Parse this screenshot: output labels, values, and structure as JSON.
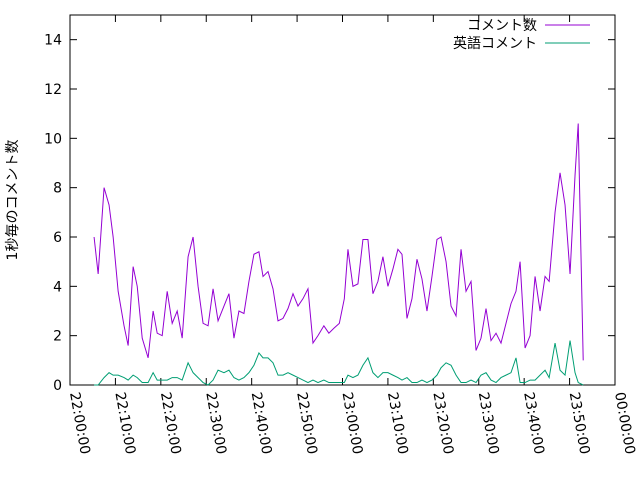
{
  "chart_data": {
    "type": "line",
    "y_label": "1秒毎のコメント数",
    "x": [
      5.3,
      6.2,
      7.5,
      8.6,
      9.5,
      10.6,
      11.9,
      12.8,
      13.9,
      14.8,
      15.9,
      17.2,
      18.3,
      19.2,
      20.3,
      21.4,
      22.5,
      23.6,
      24.7,
      26,
      27.1,
      28.2,
      29.3,
      30.4,
      31.5,
      32.6,
      33.9,
      35,
      36.1,
      37.2,
      38.3,
      39.4,
      40.5,
      41.6,
      42.5,
      43.6,
      44.7,
      45.8,
      46.9,
      48,
      49.1,
      50.2,
      51.3,
      52.4,
      53.5,
      54.6,
      55.9,
      57,
      58.1,
      59.3,
      60.4,
      61.2,
      62.3,
      63.4,
      64.5,
      65.6,
      66.7,
      67.8,
      68.9,
      70,
      71.1,
      72.2,
      73.1,
      74.2,
      75.3,
      76.4,
      77.5,
      78.6,
      79.7,
      80.8,
      81.7,
      82.8,
      83.9,
      85,
      86.1,
      87.2,
      88.3,
      89.4,
      90.5,
      91.6,
      92.7,
      93.8,
      94.9,
      96,
      97.1,
      98.2,
      99.1,
      100.2,
      101.3,
      102.4,
      103.5,
      104.6,
      105.5,
      106.8,
      107.9,
      109,
      110.1,
      111.2,
      111.9,
      113
    ],
    "series": [
      {
        "name": "コメント数",
        "color": "#9400d3",
        "values": [
          6.0,
          4.5,
          8.0,
          7.3,
          6.0,
          3.8,
          2.4,
          1.6,
          4.8,
          4.0,
          1.9,
          1.1,
          3.0,
          2.1,
          2.0,
          3.8,
          2.5,
          3.0,
          1.9,
          5.2,
          6.0,
          4.0,
          2.5,
          2.4,
          3.9,
          2.6,
          3.2,
          3.7,
          1.9,
          3.0,
          2.9,
          4.2,
          5.3,
          5.4,
          4.4,
          4.6,
          3.9,
          2.6,
          2.7,
          3.1,
          3.7,
          3.2,
          3.5,
          3.9,
          1.7,
          2.0,
          2.4,
          2.1,
          2.3,
          2.5,
          3.5,
          5.5,
          4.0,
          4.1,
          5.9,
          5.9,
          3.7,
          4.2,
          5.2,
          4.0,
          4.7,
          5.5,
          5.3,
          2.7,
          3.5,
          5.1,
          4.3,
          3.0,
          4.4,
          5.9,
          6.0,
          5.0,
          3.2,
          2.8,
          5.5,
          3.8,
          4.2,
          1.4,
          1.9,
          3.1,
          1.8,
          2.1,
          1.7,
          2.5,
          3.3,
          3.8,
          5.0,
          1.5,
          2.0,
          4.4,
          3.0,
          4.4,
          4.2,
          7.0,
          8.6,
          7.3,
          4.5,
          8.5,
          10.6,
          1.0
        ]
      },
      {
        "name": "英語コメント",
        "color": "#009e73",
        "values": [
          0,
          0,
          0.3,
          0.5,
          0.4,
          0.4,
          0.3,
          0.2,
          0.4,
          0.3,
          0.1,
          0.1,
          0.5,
          0.2,
          0.2,
          0.2,
          0.3,
          0.3,
          0.2,
          0.9,
          0.5,
          0.3,
          0.1,
          0,
          0.2,
          0.6,
          0.5,
          0.6,
          0.3,
          0.2,
          0.3,
          0.5,
          0.8,
          1.3,
          1.1,
          1.1,
          0.9,
          0.4,
          0.4,
          0.5,
          0.4,
          0.3,
          0.2,
          0.1,
          0.2,
          0.1,
          0.2,
          0.1,
          0.1,
          0.1,
          0.1,
          0.4,
          0.3,
          0.4,
          0.8,
          1.1,
          0.5,
          0.3,
          0.5,
          0.5,
          0.4,
          0.3,
          0.2,
          0.3,
          0.1,
          0.1,
          0.2,
          0.1,
          0.2,
          0.4,
          0.7,
          0.9,
          0.8,
          0.4,
          0.1,
          0.1,
          0.2,
          0.1,
          0.4,
          0.5,
          0.2,
          0.1,
          0.3,
          0.4,
          0.5,
          1.1,
          0.1,
          0.1,
          0.2,
          0.2,
          0.4,
          0.6,
          0.3,
          1.7,
          0.6,
          0.4,
          1.8,
          0.5,
          0.1,
          0
        ]
      }
    ],
    "xlim": [
      0,
      120
    ],
    "xticks": [
      {
        "value": 0,
        "label": "22:00:00"
      },
      {
        "value": 10,
        "label": "22:10:00"
      },
      {
        "value": 20,
        "label": "22:20:00"
      },
      {
        "value": 30,
        "label": "22:30:00"
      },
      {
        "value": 40,
        "label": "22:40:00"
      },
      {
        "value": 50,
        "label": "22:50:00"
      },
      {
        "value": 60,
        "label": "23:00:00"
      },
      {
        "value": 70,
        "label": "23:10:00"
      },
      {
        "value": 80,
        "label": "23:20:00"
      },
      {
        "value": 90,
        "label": "23:30:00"
      },
      {
        "value": 100,
        "label": "23:40:00"
      },
      {
        "value": 110,
        "label": "23:50:00"
      },
      {
        "value": 120,
        "label": "00:00:00"
      }
    ],
    "ylim": [
      0,
      15
    ],
    "yticks": [
      0,
      2,
      4,
      6,
      8,
      10,
      12,
      14
    ],
    "legend": "top-right"
  }
}
